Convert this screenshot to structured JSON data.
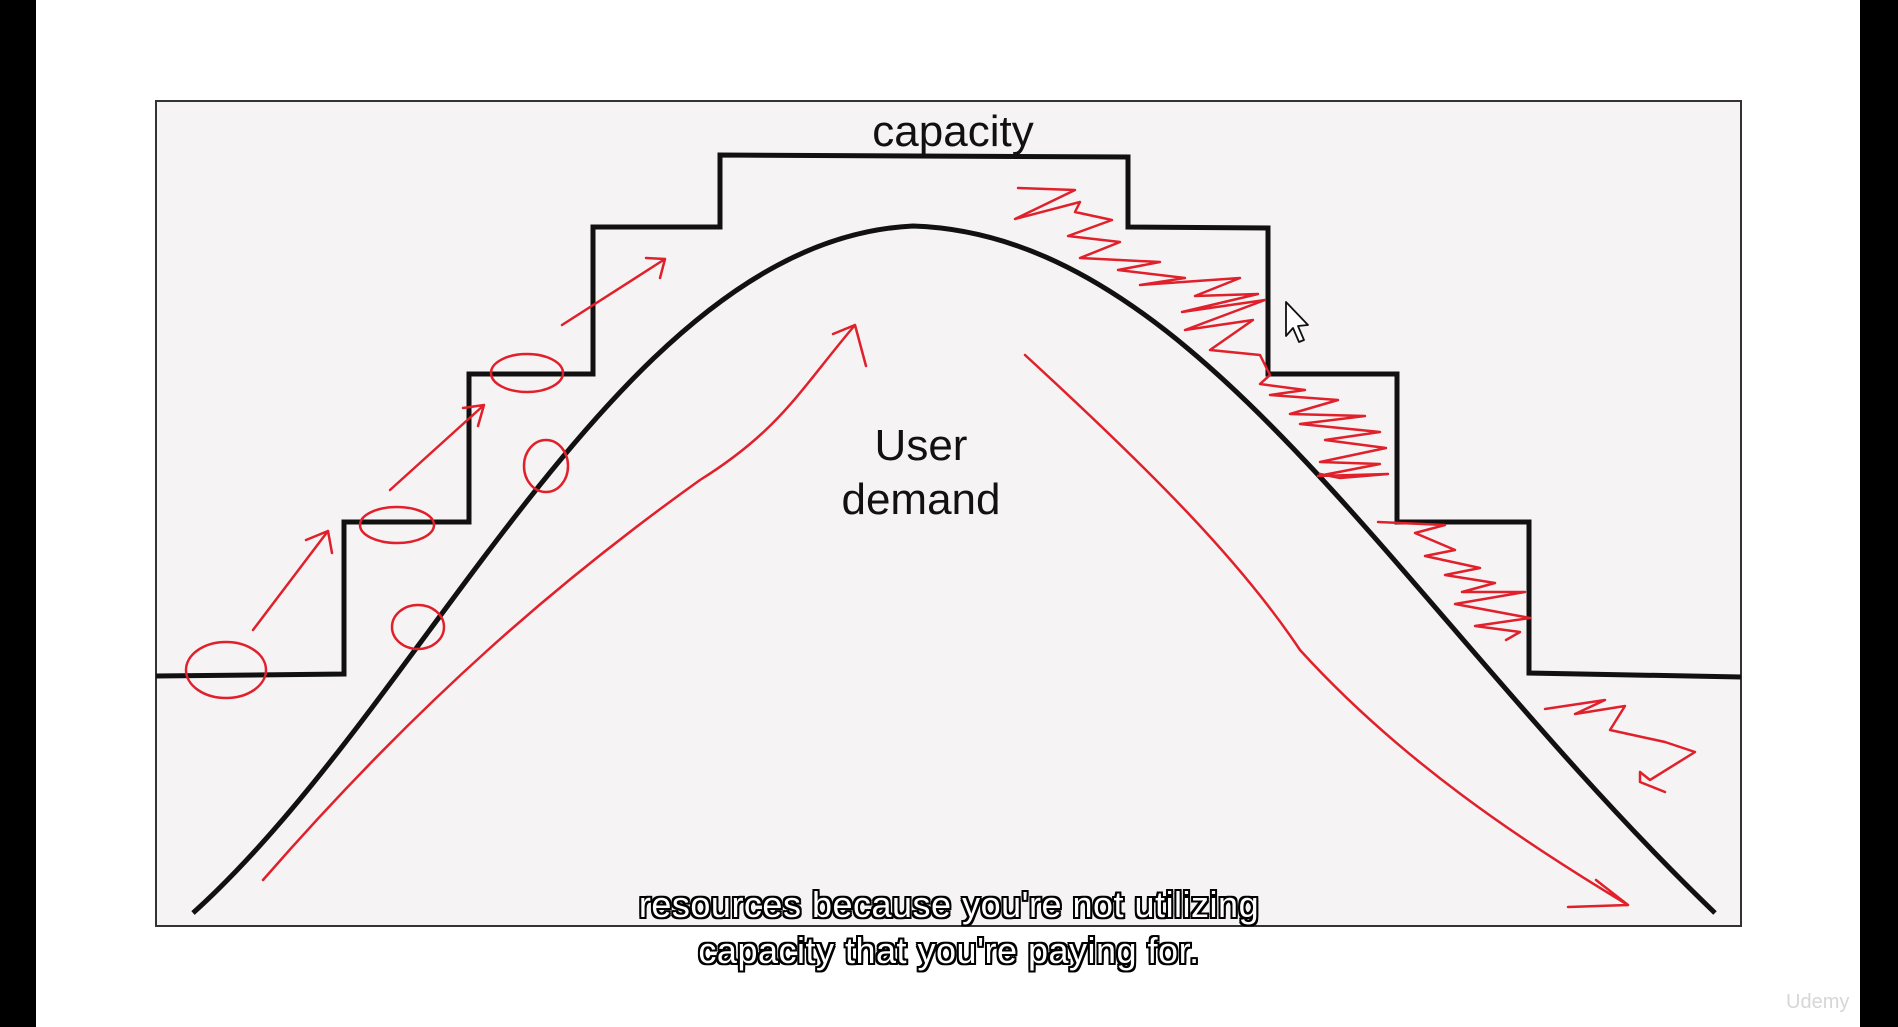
{
  "diagram": {
    "capacity_label": "capacity",
    "demand_label_line1": "User",
    "demand_label_line2": "demand"
  },
  "subtitles": {
    "line1": "resources because you're not utilizing",
    "line2": "capacity that you're paying for."
  },
  "watermark": "Udemy",
  "colors": {
    "ink": "#111111",
    "annotation": "#e0202a",
    "panel": "#f6f3f5",
    "background": "#000000"
  }
}
